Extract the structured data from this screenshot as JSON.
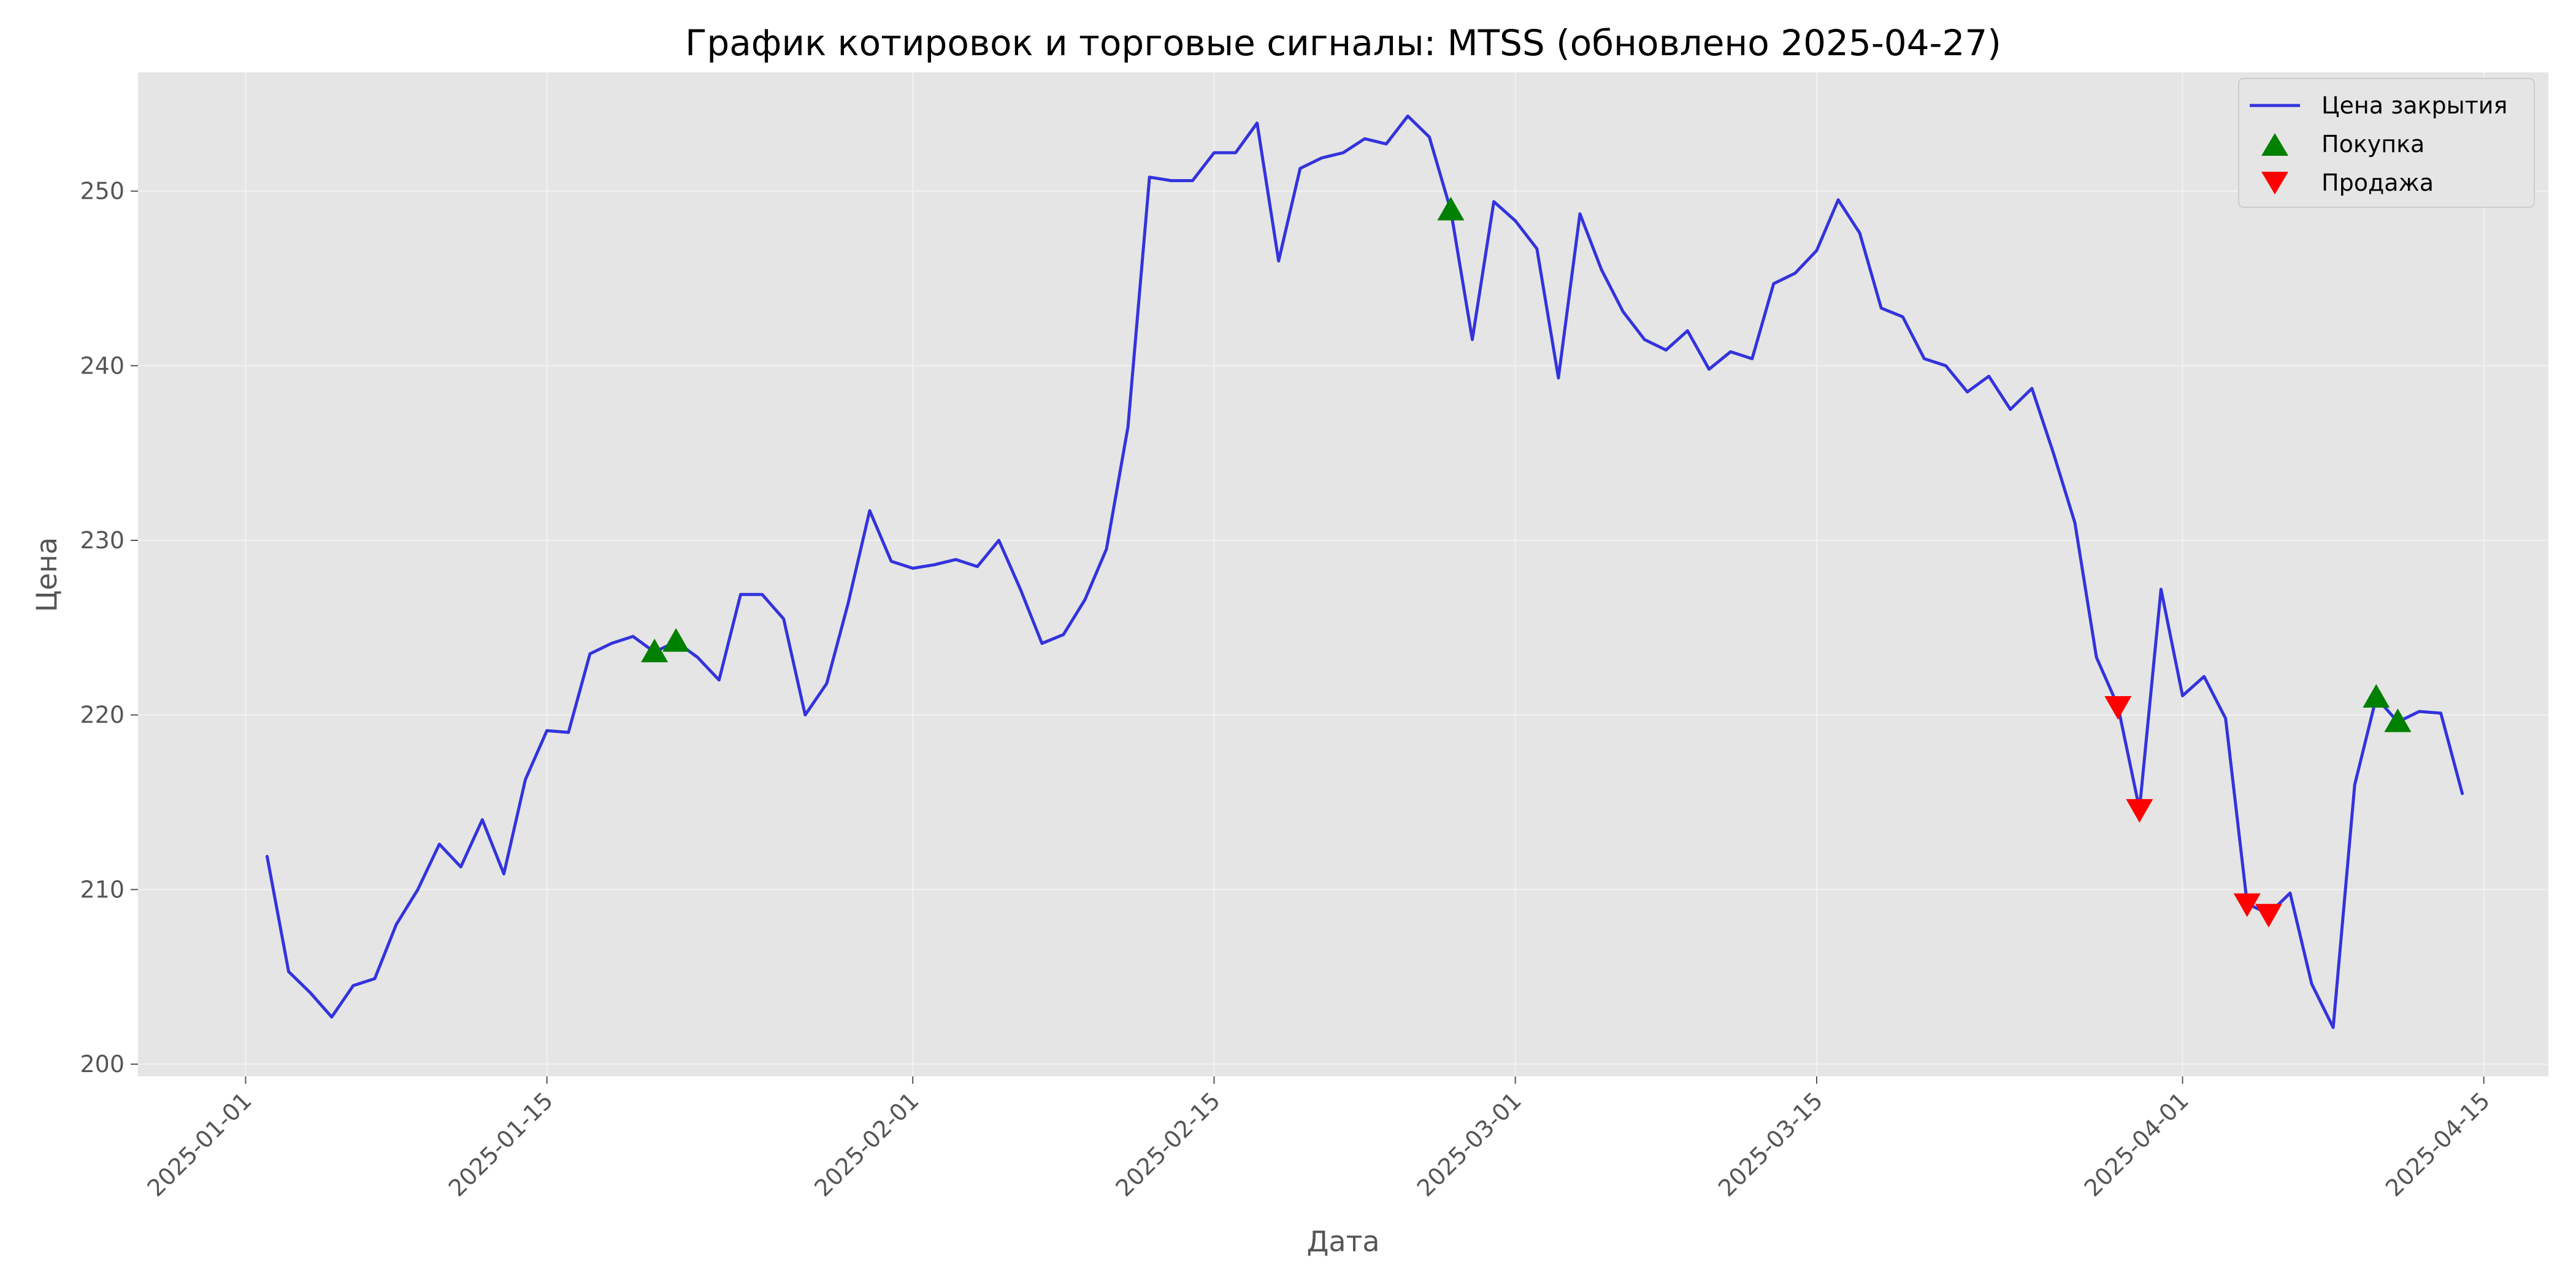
{
  "chart_data": {
    "type": "line",
    "title": "График котировок и торговые сигналы: MTSS (обновлено 2025-04-27)",
    "xlabel": "Дата",
    "ylabel": "Цена",
    "ylim": [
      199.3,
      256.8
    ],
    "xlim": [
      "2024-12-27",
      "2025-04-18"
    ],
    "grid": true,
    "legend_position": "top-right",
    "x_ticks": [
      "2025-01-01",
      "2025-01-15",
      "2025-02-01",
      "2025-02-15",
      "2025-03-01",
      "2025-03-15",
      "2025-04-01",
      "2025-04-15"
    ],
    "y_ticks": [
      200,
      210,
      220,
      230,
      240,
      250
    ],
    "series": [
      {
        "name": "Цена закрытия",
        "color": "#3333dd",
        "points": [
          [
            "2025-01-02",
            211.9
          ],
          [
            "2025-01-03",
            205.3
          ],
          [
            "2025-01-04",
            204.1
          ],
          [
            "2025-01-05",
            202.7
          ],
          [
            "2025-01-06",
            204.5
          ],
          [
            "2025-01-07",
            204.9
          ],
          [
            "2025-01-08",
            208.0
          ],
          [
            "2025-01-09",
            210.0
          ],
          [
            "2025-01-10",
            212.6
          ],
          [
            "2025-01-11",
            211.3
          ],
          [
            "2025-01-12",
            214.0
          ],
          [
            "2025-01-13",
            210.9
          ],
          [
            "2025-01-14",
            216.3
          ],
          [
            "2025-01-15",
            219.1
          ],
          [
            "2025-01-16",
            219.0
          ],
          [
            "2025-01-17",
            223.5
          ],
          [
            "2025-01-18",
            224.1
          ],
          [
            "2025-01-19",
            224.5
          ],
          [
            "2025-01-20",
            223.6
          ],
          [
            "2025-01-21",
            224.2
          ],
          [
            "2025-01-22",
            223.3
          ],
          [
            "2025-01-23",
            222.0
          ],
          [
            "2025-01-24",
            226.9
          ],
          [
            "2025-01-25",
            226.9
          ],
          [
            "2025-01-26",
            225.5
          ],
          [
            "2025-01-27",
            220.0
          ],
          [
            "2025-01-28",
            221.8
          ],
          [
            "2025-01-29",
            226.4
          ],
          [
            "2025-01-30",
            231.7
          ],
          [
            "2025-01-31",
            228.8
          ],
          [
            "2025-02-01",
            228.4
          ],
          [
            "2025-02-02",
            228.6
          ],
          [
            "2025-02-03",
            228.9
          ],
          [
            "2025-02-04",
            228.5
          ],
          [
            "2025-02-05",
            230.0
          ],
          [
            "2025-02-06",
            227.2
          ],
          [
            "2025-02-07",
            224.1
          ],
          [
            "2025-02-08",
            224.6
          ],
          [
            "2025-02-09",
            226.6
          ],
          [
            "2025-02-10",
            229.5
          ],
          [
            "2025-02-11",
            236.5
          ],
          [
            "2025-02-12",
            250.8
          ],
          [
            "2025-02-13",
            250.6
          ],
          [
            "2025-02-14",
            250.6
          ],
          [
            "2025-02-15",
            252.2
          ],
          [
            "2025-02-16",
            252.2
          ],
          [
            "2025-02-17",
            253.9
          ],
          [
            "2025-02-18",
            246.0
          ],
          [
            "2025-02-19",
            251.3
          ],
          [
            "2025-02-20",
            251.9
          ],
          [
            "2025-02-21",
            252.2
          ],
          [
            "2025-02-22",
            253.0
          ],
          [
            "2025-02-23",
            252.7
          ],
          [
            "2025-02-24",
            254.3
          ],
          [
            "2025-02-25",
            253.1
          ],
          [
            "2025-02-26",
            248.9
          ],
          [
            "2025-02-27",
            241.5
          ],
          [
            "2025-02-28",
            249.4
          ],
          [
            "2025-03-01",
            248.3
          ],
          [
            "2025-03-02",
            246.7
          ],
          [
            "2025-03-03",
            239.3
          ],
          [
            "2025-03-04",
            248.7
          ],
          [
            "2025-03-05",
            245.5
          ],
          [
            "2025-03-06",
            243.1
          ],
          [
            "2025-03-07",
            241.5
          ],
          [
            "2025-03-08",
            240.9
          ],
          [
            "2025-03-09",
            242.0
          ],
          [
            "2025-03-10",
            239.8
          ],
          [
            "2025-03-11",
            240.8
          ],
          [
            "2025-03-12",
            240.4
          ],
          [
            "2025-03-13",
            244.7
          ],
          [
            "2025-03-14",
            245.3
          ],
          [
            "2025-03-15",
            246.6
          ],
          [
            "2025-03-16",
            249.5
          ],
          [
            "2025-03-17",
            247.6
          ],
          [
            "2025-03-18",
            243.3
          ],
          [
            "2025-03-19",
            242.8
          ],
          [
            "2025-03-20",
            240.4
          ],
          [
            "2025-03-21",
            240.0
          ],
          [
            "2025-03-22",
            238.5
          ],
          [
            "2025-03-23",
            239.4
          ],
          [
            "2025-03-24",
            237.5
          ],
          [
            "2025-03-25",
            238.7
          ],
          [
            "2025-03-26",
            235.0
          ],
          [
            "2025-03-27",
            231.0
          ],
          [
            "2025-03-28",
            223.3
          ],
          [
            "2025-03-29",
            220.5
          ],
          [
            "2025-03-30",
            214.6
          ],
          [
            "2025-03-31",
            227.2
          ],
          [
            "2025-04-01",
            221.1
          ],
          [
            "2025-04-02",
            222.2
          ],
          [
            "2025-04-03",
            219.8
          ],
          [
            "2025-04-04",
            209.2
          ],
          [
            "2025-04-05",
            208.6
          ],
          [
            "2025-04-06",
            209.8
          ],
          [
            "2025-04-07",
            204.6
          ],
          [
            "2025-04-08",
            202.1
          ],
          [
            "2025-04-09",
            216.0
          ],
          [
            "2025-04-10",
            221.0
          ],
          [
            "2025-04-11",
            219.6
          ],
          [
            "2025-04-12",
            220.2
          ],
          [
            "2025-04-13",
            220.1
          ],
          [
            "2025-04-14",
            215.5
          ]
        ]
      }
    ],
    "markers": [
      {
        "name": "Покупка",
        "shape": "triangle-up",
        "color": "#008000",
        "points": [
          [
            "2025-01-20",
            223.6
          ],
          [
            "2025-01-21",
            224.2
          ],
          [
            "2025-02-26",
            248.9
          ],
          [
            "2025-04-10",
            221.0
          ],
          [
            "2025-04-11",
            219.6
          ]
        ]
      },
      {
        "name": "Продажа",
        "shape": "triangle-down",
        "color": "#ff0000",
        "points": [
          [
            "2025-03-29",
            220.5
          ],
          [
            "2025-03-30",
            214.6
          ],
          [
            "2025-04-04",
            209.2
          ],
          [
            "2025-04-05",
            208.6
          ]
        ]
      }
    ],
    "colors": {
      "plot_background": "#e5e5e5",
      "grid": "#f2f2f2"
    }
  }
}
